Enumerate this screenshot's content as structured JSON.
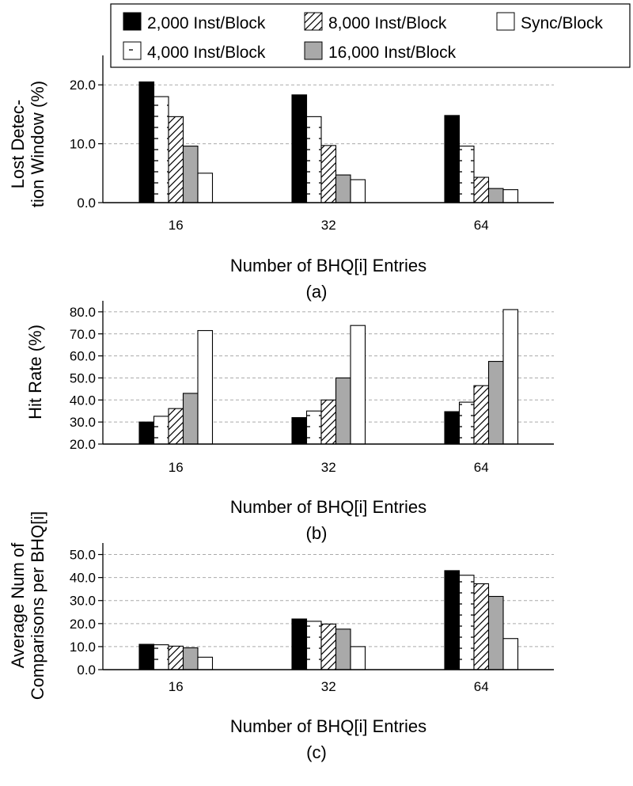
{
  "legend": {
    "entries": [
      {
        "label": "2,000 Inst/Block",
        "pattern": "solid-black"
      },
      {
        "label": "8,000 Inst/Block",
        "pattern": "diagonal-hatch"
      },
      {
        "label": "Sync/Block",
        "pattern": "white"
      },
      {
        "label": "4,000 Inst/Block",
        "pattern": "dashed"
      },
      {
        "label": "16,000 Inst/Block",
        "pattern": "solid-gray"
      }
    ]
  },
  "colors": {
    "black": "#000000",
    "gray": "#a9a9a9",
    "white": "#ffffff",
    "grid": "#aaaaaa"
  },
  "chart_data": [
    {
      "type": "bar",
      "panel_label": "(a)",
      "xlabel": "Number of BHQ[i] Entries",
      "ylabel": [
        "Lost Detec-",
        "tion Window (%)"
      ],
      "categories": [
        "16",
        "32",
        "64"
      ],
      "ylim": [
        0,
        25
      ],
      "yticks": [
        "0.0",
        "10.0",
        "20.0"
      ],
      "ytick_values": [
        0,
        10,
        20
      ],
      "grid": true,
      "series": [
        {
          "name": "2,000 Inst/Block",
          "values": [
            20.5,
            18.3,
            14.8
          ]
        },
        {
          "name": "4,000 Inst/Block",
          "values": [
            18.0,
            14.6,
            9.6
          ]
        },
        {
          "name": "8,000 Inst/Block",
          "values": [
            14.6,
            9.7,
            4.3
          ]
        },
        {
          "name": "16,000 Inst/Block",
          "values": [
            9.6,
            4.7,
            2.4
          ]
        },
        {
          "name": "Sync/Block",
          "values": [
            5.0,
            3.9,
            2.2
          ]
        }
      ]
    },
    {
      "type": "bar",
      "panel_label": "(b)",
      "xlabel": "Number of BHQ[i] Entries",
      "ylabel": [
        "Hit Rate (%)"
      ],
      "categories": [
        "16",
        "32",
        "64"
      ],
      "ylim": [
        20,
        85
      ],
      "yticks": [
        "20.0",
        "30.0",
        "40.0",
        "50.0",
        "60.0",
        "70.0",
        "80.0"
      ],
      "ytick_values": [
        20,
        30,
        40,
        50,
        60,
        70,
        80
      ],
      "grid": true,
      "series": [
        {
          "name": "2,000 Inst/Block",
          "values": [
            30.0,
            32.0,
            34.7
          ]
        },
        {
          "name": "4,000 Inst/Block",
          "values": [
            32.6,
            35.0,
            39.0
          ]
        },
        {
          "name": "8,000 Inst/Block",
          "values": [
            36.1,
            40.0,
            46.5
          ]
        },
        {
          "name": "16,000 Inst/Block",
          "values": [
            43.0,
            50.0,
            57.5
          ]
        },
        {
          "name": "Sync/Block",
          "values": [
            71.5,
            73.8,
            81.0
          ]
        }
      ]
    },
    {
      "type": "bar",
      "panel_label": "(c)",
      "xlabel": "Number of BHQ[i] Entries",
      "ylabel": [
        "Average Num of",
        "Comparisons per BHQ[i]"
      ],
      "categories": [
        "16",
        "32",
        "64"
      ],
      "ylim": [
        0,
        55
      ],
      "yticks": [
        "0.0",
        "10.0",
        "20.0",
        "30.0",
        "40.0",
        "50.0"
      ],
      "ytick_values": [
        0,
        10,
        20,
        30,
        40,
        50
      ],
      "grid": true,
      "series": [
        {
          "name": "2,000 Inst/Block",
          "values": [
            11.0,
            22.0,
            43.0
          ]
        },
        {
          "name": "4,000 Inst/Block",
          "values": [
            10.8,
            21.0,
            41.0
          ]
        },
        {
          "name": "8,000 Inst/Block",
          "values": [
            10.2,
            19.8,
            37.3
          ]
        },
        {
          "name": "16,000 Inst/Block",
          "values": [
            9.5,
            17.6,
            31.8
          ]
        },
        {
          "name": "Sync/Block",
          "values": [
            5.4,
            10.0,
            13.5
          ]
        }
      ]
    }
  ]
}
